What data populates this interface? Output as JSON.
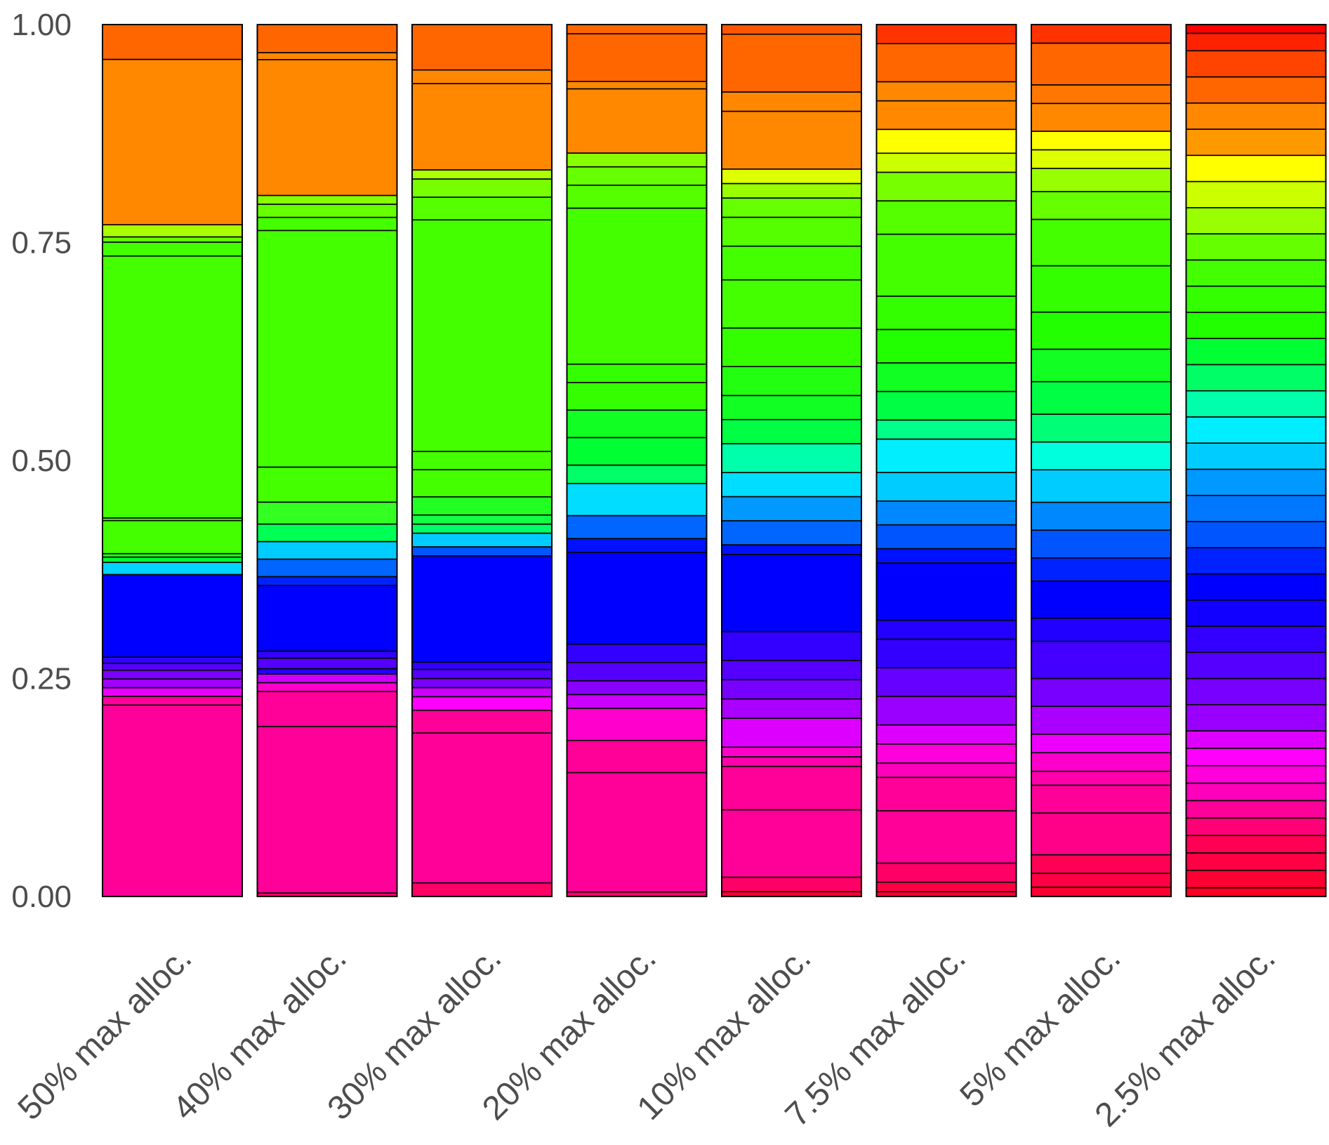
{
  "chart_data": {
    "type": "bar",
    "stacked": true,
    "title": "",
    "xlabel": "",
    "ylabel": "",
    "ylim": [
      0,
      1
    ],
    "yticks": [
      "0.00",
      "0.25",
      "0.50",
      "0.75",
      "1.00"
    ],
    "ytick_values": [
      0,
      0.25,
      0.5,
      0.75,
      1
    ],
    "grid": false,
    "legend": "none",
    "categories": [
      "50% max alloc.",
      "40% max alloc.",
      "30% max alloc.",
      "20% max alloc.",
      "10% max alloc.",
      "7.5% max alloc.",
      "5% max alloc.",
      "2.5% max alloc."
    ],
    "bars": [
      {
        "category": "50% max alloc.",
        "segments": [
          {
            "value": 0.22,
            "color": "#ff0099"
          },
          {
            "value": 0.01,
            "color": "#ff0099"
          },
          {
            "value": 0.01,
            "color": "#e600ff"
          },
          {
            "value": 0.01,
            "color": "#a000ff"
          },
          {
            "value": 0.01,
            "color": "#7a00ff"
          },
          {
            "value": 0.008,
            "color": "#5500ff"
          },
          {
            "value": 0.007,
            "color": "#3300ff"
          },
          {
            "value": 0.095,
            "color": "#0000ff"
          },
          {
            "value": 0.014,
            "color": "#00d4ff"
          },
          {
            "value": 0.006,
            "color": "#00ff33"
          },
          {
            "value": 0.004,
            "color": "#22ff11"
          },
          {
            "value": 0.038,
            "color": "#44ff00"
          },
          {
            "value": 0.003,
            "color": "#44ff00"
          },
          {
            "value": 0.301,
            "color": "#44ff00"
          },
          {
            "value": 0.016,
            "color": "#44ff00"
          },
          {
            "value": 0.006,
            "color": "#66ff00"
          },
          {
            "value": 0.014,
            "color": "#aaff00"
          },
          {
            "value": 0.19,
            "color": "#ff8800"
          },
          {
            "value": 0.04,
            "color": "#ff6600"
          }
        ]
      },
      {
        "category": "40% max alloc.",
        "segments": [
          {
            "value": 0.004,
            "color": "#ff0066"
          },
          {
            "value": 0.19,
            "color": "#ff0099"
          },
          {
            "value": 0.04,
            "color": "#ff0099"
          },
          {
            "value": 0.01,
            "color": "#ff00cc"
          },
          {
            "value": 0.01,
            "color": "#cc00ff"
          },
          {
            "value": 0.006,
            "color": "#2200ff"
          },
          {
            "value": 0.012,
            "color": "#5500ff"
          },
          {
            "value": 0.008,
            "color": "#3300ff"
          },
          {
            "value": 0.075,
            "color": "#0000ff"
          },
          {
            "value": 0.01,
            "color": "#0022ff"
          },
          {
            "value": 0.02,
            "color": "#0066ff"
          },
          {
            "value": 0.02,
            "color": "#00ccff"
          },
          {
            "value": 0.02,
            "color": "#00ff55"
          },
          {
            "value": 0.025,
            "color": "#33ff22"
          },
          {
            "value": 0.04,
            "color": "#44ff00"
          },
          {
            "value": 0.27,
            "color": "#44ff00"
          },
          {
            "value": 0.015,
            "color": "#44ff00"
          },
          {
            "value": 0.015,
            "color": "#66ff00"
          },
          {
            "value": 0.01,
            "color": "#88ff00"
          },
          {
            "value": 0.155,
            "color": "#ff8800"
          },
          {
            "value": 0.008,
            "color": "#ff8800"
          },
          {
            "value": 0.032,
            "color": "#ff6600"
          }
        ]
      },
      {
        "category": "30% max alloc.",
        "segments": [
          {
            "value": 0.015,
            "color": "#ff0066"
          },
          {
            "value": 0.165,
            "color": "#ff0099"
          },
          {
            "value": 0.025,
            "color": "#ff0099"
          },
          {
            "value": 0.015,
            "color": "#ff00ff"
          },
          {
            "value": 0.01,
            "color": "#cc00ff"
          },
          {
            "value": 0.01,
            "color": "#7a00ff"
          },
          {
            "value": 0.01,
            "color": "#5500ff"
          },
          {
            "value": 0.008,
            "color": "#3300ff"
          },
          {
            "value": 0.117,
            "color": "#0000ff"
          },
          {
            "value": 0.01,
            "color": "#0055ff"
          },
          {
            "value": 0.015,
            "color": "#00ccff"
          },
          {
            "value": 0.01,
            "color": "#00ff66"
          },
          {
            "value": 0.01,
            "color": "#11ff44"
          },
          {
            "value": 0.02,
            "color": "#22ff22"
          },
          {
            "value": 0.03,
            "color": "#44ff00"
          },
          {
            "value": 0.02,
            "color": "#44ff00"
          },
          {
            "value": 0.255,
            "color": "#44ff00"
          },
          {
            "value": 0.025,
            "color": "#55ff00"
          },
          {
            "value": 0.02,
            "color": "#77ff00"
          },
          {
            "value": 0.01,
            "color": "#aaff00"
          },
          {
            "value": 0.095,
            "color": "#ff8800"
          },
          {
            "value": 0.015,
            "color": "#ff8800"
          },
          {
            "value": 0.05,
            "color": "#ff6600"
          }
        ]
      },
      {
        "category": "20% max alloc.",
        "segments": [
          {
            "value": 0.005,
            "color": "#ff0066"
          },
          {
            "value": 0.13,
            "color": "#ff0099"
          },
          {
            "value": 0.035,
            "color": "#ff0099"
          },
          {
            "value": 0.035,
            "color": "#ff00cc"
          },
          {
            "value": 0.015,
            "color": "#cc00ff"
          },
          {
            "value": 0.015,
            "color": "#8800ff"
          },
          {
            "value": 0.02,
            "color": "#5500ff"
          },
          {
            "value": 0.02,
            "color": "#3300ff"
          },
          {
            "value": 0.1,
            "color": "#0000ff"
          },
          {
            "value": 0.015,
            "color": "#0011ff"
          },
          {
            "value": 0.025,
            "color": "#0066ff"
          },
          {
            "value": 0.035,
            "color": "#00ddff"
          },
          {
            "value": 0.02,
            "color": "#00ff66"
          },
          {
            "value": 0.03,
            "color": "#00ff33"
          },
          {
            "value": 0.03,
            "color": "#11ff22"
          },
          {
            "value": 0.03,
            "color": "#33ff00"
          },
          {
            "value": 0.02,
            "color": "#33ff00"
          },
          {
            "value": 0.17,
            "color": "#44ff00"
          },
          {
            "value": 0.025,
            "color": "#55ff00"
          },
          {
            "value": 0.02,
            "color": "#66ff00"
          },
          {
            "value": 0.015,
            "color": "#88ff00"
          },
          {
            "value": 0.07,
            "color": "#ff8800"
          },
          {
            "value": 0.008,
            "color": "#ff8800"
          },
          {
            "value": 0.052,
            "color": "#ff6600"
          },
          {
            "value": 0.01,
            "color": "#ff6600"
          }
        ]
      },
      {
        "category": "10% max alloc.",
        "segments": [
          {
            "value": 0.005,
            "color": "#ff0033"
          },
          {
            "value": 0.015,
            "color": "#ff0066"
          },
          {
            "value": 0.07,
            "color": "#ff0099"
          },
          {
            "value": 0.045,
            "color": "#ff0099"
          },
          {
            "value": 0.01,
            "color": "#ff00aa"
          },
          {
            "value": 0.01,
            "color": "#ff00cc"
          },
          {
            "value": 0.03,
            "color": "#dd00ff"
          },
          {
            "value": 0.02,
            "color": "#aa00ff"
          },
          {
            "value": 0.02,
            "color": "#7700ff"
          },
          {
            "value": 0.02,
            "color": "#5500ff"
          },
          {
            "value": 0.03,
            "color": "#3300ff"
          },
          {
            "value": 0.08,
            "color": "#0000ff"
          },
          {
            "value": 0.01,
            "color": "#0011ff"
          },
          {
            "value": 0.025,
            "color": "#0066ff"
          },
          {
            "value": 0.025,
            "color": "#0099ff"
          },
          {
            "value": 0.025,
            "color": "#00ddff"
          },
          {
            "value": 0.03,
            "color": "#00ffaa"
          },
          {
            "value": 0.025,
            "color": "#00ff44"
          },
          {
            "value": 0.025,
            "color": "#11ff22"
          },
          {
            "value": 0.03,
            "color": "#22ff11"
          },
          {
            "value": 0.04,
            "color": "#33ff00"
          },
          {
            "value": 0.05,
            "color": "#44ff00"
          },
          {
            "value": 0.035,
            "color": "#44ff00"
          },
          {
            "value": 0.03,
            "color": "#55ff00"
          },
          {
            "value": 0.02,
            "color": "#66ff00"
          },
          {
            "value": 0.015,
            "color": "#99ff00"
          },
          {
            "value": 0.015,
            "color": "#ddff00"
          },
          {
            "value": 0.06,
            "color": "#ff8800"
          },
          {
            "value": 0.02,
            "color": "#ff8800"
          },
          {
            "value": 0.06,
            "color": "#ff6600"
          },
          {
            "value": 0.01,
            "color": "#ff5500"
          }
        ]
      },
      {
        "category": "7.5% max alloc.",
        "segments": [
          {
            "value": 0.005,
            "color": "#ff0033"
          },
          {
            "value": 0.01,
            "color": "#ff0044"
          },
          {
            "value": 0.02,
            "color": "#ff0066"
          },
          {
            "value": 0.055,
            "color": "#ff0099"
          },
          {
            "value": 0.035,
            "color": "#ff0099"
          },
          {
            "value": 0.015,
            "color": "#ff00bb"
          },
          {
            "value": 0.02,
            "color": "#ff00dd"
          },
          {
            "value": 0.02,
            "color": "#dd00ff"
          },
          {
            "value": 0.03,
            "color": "#9900ff"
          },
          {
            "value": 0.03,
            "color": "#6600ff"
          },
          {
            "value": 0.03,
            "color": "#3300ff"
          },
          {
            "value": 0.02,
            "color": "#2200ff"
          },
          {
            "value": 0.06,
            "color": "#0000ff"
          },
          {
            "value": 0.015,
            "color": "#0011ff"
          },
          {
            "value": 0.025,
            "color": "#0055ff"
          },
          {
            "value": 0.025,
            "color": "#0088ff"
          },
          {
            "value": 0.03,
            "color": "#00ccff"
          },
          {
            "value": 0.035,
            "color": "#00eeff"
          },
          {
            "value": 0.02,
            "color": "#00ff88"
          },
          {
            "value": 0.03,
            "color": "#00ff44"
          },
          {
            "value": 0.03,
            "color": "#11ff22"
          },
          {
            "value": 0.035,
            "color": "#22ff00"
          },
          {
            "value": 0.035,
            "color": "#33ff00"
          },
          {
            "value": 0.065,
            "color": "#44ff00"
          },
          {
            "value": 0.035,
            "color": "#55ff00"
          },
          {
            "value": 0.03,
            "color": "#77ff00"
          },
          {
            "value": 0.02,
            "color": "#ccff00"
          },
          {
            "value": 0.025,
            "color": "#ffff00"
          },
          {
            "value": 0.03,
            "color": "#ff8800"
          },
          {
            "value": 0.02,
            "color": "#ff8800"
          },
          {
            "value": 0.04,
            "color": "#ff6600"
          },
          {
            "value": 0.02,
            "color": "#ff3300"
          }
        ]
      },
      {
        "category": "5% max alloc.",
        "segments": [
          {
            "value": 0.01,
            "color": "#ff0033"
          },
          {
            "value": 0.015,
            "color": "#ff0044"
          },
          {
            "value": 0.02,
            "color": "#ff0055"
          },
          {
            "value": 0.045,
            "color": "#ff0088"
          },
          {
            "value": 0.03,
            "color": "#ff0099"
          },
          {
            "value": 0.015,
            "color": "#ff00aa"
          },
          {
            "value": 0.02,
            "color": "#ff00cc"
          },
          {
            "value": 0.02,
            "color": "#ee00ff"
          },
          {
            "value": 0.03,
            "color": "#aa00ff"
          },
          {
            "value": 0.03,
            "color": "#7700ff"
          },
          {
            "value": 0.04,
            "color": "#4400ff"
          },
          {
            "value": 0.025,
            "color": "#2200ff"
          },
          {
            "value": 0.04,
            "color": "#0000ff"
          },
          {
            "value": 0.025,
            "color": "#0022ff"
          },
          {
            "value": 0.03,
            "color": "#0055ff"
          },
          {
            "value": 0.03,
            "color": "#0088ff"
          },
          {
            "value": 0.035,
            "color": "#00ccff"
          },
          {
            "value": 0.03,
            "color": "#00ffdd"
          },
          {
            "value": 0.03,
            "color": "#00ff77"
          },
          {
            "value": 0.035,
            "color": "#00ff44"
          },
          {
            "value": 0.035,
            "color": "#11ff22"
          },
          {
            "value": 0.04,
            "color": "#22ff00"
          },
          {
            "value": 0.05,
            "color": "#33ff00"
          },
          {
            "value": 0.05,
            "color": "#44ff00"
          },
          {
            "value": 0.03,
            "color": "#66ff00"
          },
          {
            "value": 0.025,
            "color": "#99ff00"
          },
          {
            "value": 0.02,
            "color": "#ddff00"
          },
          {
            "value": 0.02,
            "color": "#ffff00"
          },
          {
            "value": 0.03,
            "color": "#ff8800"
          },
          {
            "value": 0.02,
            "color": "#ff7700"
          },
          {
            "value": 0.045,
            "color": "#ff6600"
          },
          {
            "value": 0.02,
            "color": "#ff3300"
          }
        ]
      },
      {
        "category": "2.5% max alloc.",
        "segments": [
          {
            "value": 0.01,
            "color": "#ff0022"
          },
          {
            "value": 0.02,
            "color": "#ff0033"
          },
          {
            "value": 0.02,
            "color": "#ff0044"
          },
          {
            "value": 0.02,
            "color": "#ff0055"
          },
          {
            "value": 0.02,
            "color": "#ff0077"
          },
          {
            "value": 0.02,
            "color": "#ff0099"
          },
          {
            "value": 0.02,
            "color": "#ff00bb"
          },
          {
            "value": 0.02,
            "color": "#ff00dd"
          },
          {
            "value": 0.02,
            "color": "#ff00ff"
          },
          {
            "value": 0.02,
            "color": "#dd00ff"
          },
          {
            "value": 0.03,
            "color": "#9900ff"
          },
          {
            "value": 0.03,
            "color": "#7700ff"
          },
          {
            "value": 0.03,
            "color": "#5500ff"
          },
          {
            "value": 0.03,
            "color": "#3300ff"
          },
          {
            "value": 0.03,
            "color": "#1100ff"
          },
          {
            "value": 0.03,
            "color": "#0000ff"
          },
          {
            "value": 0.03,
            "color": "#0022ff"
          },
          {
            "value": 0.03,
            "color": "#0055ff"
          },
          {
            "value": 0.03,
            "color": "#0077ff"
          },
          {
            "value": 0.03,
            "color": "#0099ff"
          },
          {
            "value": 0.03,
            "color": "#00ccff"
          },
          {
            "value": 0.03,
            "color": "#00eeff"
          },
          {
            "value": 0.03,
            "color": "#00ffaa"
          },
          {
            "value": 0.03,
            "color": "#00ff66"
          },
          {
            "value": 0.03,
            "color": "#00ff33"
          },
          {
            "value": 0.03,
            "color": "#22ff00"
          },
          {
            "value": 0.03,
            "color": "#33ff00"
          },
          {
            "value": 0.03,
            "color": "#44ff00"
          },
          {
            "value": 0.03,
            "color": "#66ff00"
          },
          {
            "value": 0.03,
            "color": "#99ff00"
          },
          {
            "value": 0.03,
            "color": "#ccff00"
          },
          {
            "value": 0.03,
            "color": "#ffff00"
          },
          {
            "value": 0.03,
            "color": "#ff9900"
          },
          {
            "value": 0.03,
            "color": "#ff8800"
          },
          {
            "value": 0.03,
            "color": "#ff6600"
          },
          {
            "value": 0.03,
            "color": "#ff4400"
          },
          {
            "value": 0.02,
            "color": "#ff2200"
          },
          {
            "value": 0.01,
            "color": "#ff0000"
          }
        ]
      }
    ]
  }
}
